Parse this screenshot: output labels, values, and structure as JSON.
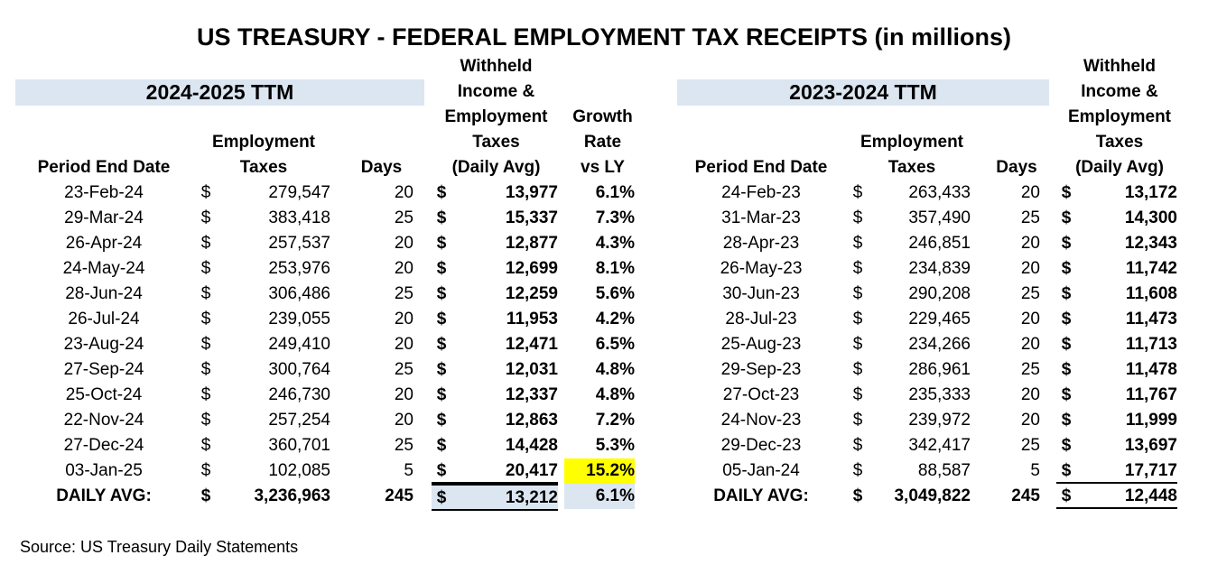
{
  "title": "US TREASURY - FEDERAL EMPLOYMENT TAX RECEIPTS (in millions)",
  "left": {
    "period_label": "2024-2025 TTM",
    "headers": {
      "date": [
        "Period End Date"
      ],
      "emp": [
        "Employment",
        "Taxes"
      ],
      "days": [
        "Days"
      ],
      "withheld": [
        "Withheld",
        "Income &",
        "Employment",
        "Taxes",
        "(Daily Avg)"
      ],
      "growth": [
        "Growth",
        "Rate",
        "vs LY"
      ]
    },
    "rows": [
      {
        "date": "23-Feb-24",
        "cur": "$",
        "emp": "279,547",
        "days": "20",
        "dcur": "$",
        "avg": "13,977",
        "growth": "6.1%"
      },
      {
        "date": "29-Mar-24",
        "cur": "$",
        "emp": "383,418",
        "days": "25",
        "dcur": "$",
        "avg": "15,337",
        "growth": "7.3%"
      },
      {
        "date": "26-Apr-24",
        "cur": "$",
        "emp": "257,537",
        "days": "20",
        "dcur": "$",
        "avg": "12,877",
        "growth": "4.3%"
      },
      {
        "date": "24-May-24",
        "cur": "$",
        "emp": "253,976",
        "days": "20",
        "dcur": "$",
        "avg": "12,699",
        "growth": "8.1%"
      },
      {
        "date": "28-Jun-24",
        "cur": "$",
        "emp": "306,486",
        "days": "25",
        "dcur": "$",
        "avg": "12,259",
        "growth": "5.6%"
      },
      {
        "date": "26-Jul-24",
        "cur": "$",
        "emp": "239,055",
        "days": "20",
        "dcur": "$",
        "avg": "11,953",
        "growth": "4.2%"
      },
      {
        "date": "23-Aug-24",
        "cur": "$",
        "emp": "249,410",
        "days": "20",
        "dcur": "$",
        "avg": "12,471",
        "growth": "6.5%"
      },
      {
        "date": "27-Sep-24",
        "cur": "$",
        "emp": "300,764",
        "days": "25",
        "dcur": "$",
        "avg": "12,031",
        "growth": "4.8%"
      },
      {
        "date": "25-Oct-24",
        "cur": "$",
        "emp": "246,730",
        "days": "20",
        "dcur": "$",
        "avg": "12,337",
        "growth": "4.8%"
      },
      {
        "date": "22-Nov-24",
        "cur": "$",
        "emp": "257,254",
        "days": "20",
        "dcur": "$",
        "avg": "12,863",
        "growth": "7.2%"
      },
      {
        "date": "27-Dec-24",
        "cur": "$",
        "emp": "360,701",
        "days": "25",
        "dcur": "$",
        "avg": "14,428",
        "growth": "5.3%"
      },
      {
        "date": "03-Jan-25",
        "cur": "$",
        "emp": "102,085",
        "days": "5",
        "dcur": "$",
        "avg": "20,417",
        "growth": "15.2%"
      }
    ],
    "total": {
      "label": "DAILY AVG:",
      "cur": "$",
      "emp": "3,236,963",
      "days": "245",
      "dcur": "$",
      "avg": "13,212",
      "growth": "6.1%"
    }
  },
  "right": {
    "period_label": "2023-2024 TTM",
    "headers": {
      "date": [
        "Period End Date"
      ],
      "emp": [
        "Employment",
        "Taxes"
      ],
      "days": [
        "Days"
      ],
      "withheld": [
        "Withheld",
        "Income &",
        "Employment",
        "Taxes",
        "(Daily Avg)"
      ]
    },
    "rows": [
      {
        "date": "24-Feb-23",
        "cur": "$",
        "emp": "263,433",
        "days": "20",
        "dcur": "$",
        "avg": "13,172"
      },
      {
        "date": "31-Mar-23",
        "cur": "$",
        "emp": "357,490",
        "days": "25",
        "dcur": "$",
        "avg": "14,300"
      },
      {
        "date": "28-Apr-23",
        "cur": "$",
        "emp": "246,851",
        "days": "20",
        "dcur": "$",
        "avg": "12,343"
      },
      {
        "date": "26-May-23",
        "cur": "$",
        "emp": "234,839",
        "days": "20",
        "dcur": "$",
        "avg": "11,742"
      },
      {
        "date": "30-Jun-23",
        "cur": "$",
        "emp": "290,208",
        "days": "25",
        "dcur": "$",
        "avg": "11,608"
      },
      {
        "date": "28-Jul-23",
        "cur": "$",
        "emp": "229,465",
        "days": "20",
        "dcur": "$",
        "avg": "11,473"
      },
      {
        "date": "25-Aug-23",
        "cur": "$",
        "emp": "234,266",
        "days": "20",
        "dcur": "$",
        "avg": "11,713"
      },
      {
        "date": "29-Sep-23",
        "cur": "$",
        "emp": "286,961",
        "days": "25",
        "dcur": "$",
        "avg": "11,478"
      },
      {
        "date": "27-Oct-23",
        "cur": "$",
        "emp": "235,333",
        "days": "20",
        "dcur": "$",
        "avg": "11,767"
      },
      {
        "date": "24-Nov-23",
        "cur": "$",
        "emp": "239,972",
        "days": "20",
        "dcur": "$",
        "avg": "11,999"
      },
      {
        "date": "29-Dec-23",
        "cur": "$",
        "emp": "342,417",
        "days": "25",
        "dcur": "$",
        "avg": "13,697"
      },
      {
        "date": "05-Jan-24",
        "cur": "$",
        "emp": "88,587",
        "days": "5",
        "dcur": "$",
        "avg": "17,717"
      }
    ],
    "total": {
      "label": "DAILY AVG:",
      "cur": "$",
      "emp": "3,049,822",
      "days": "245",
      "dcur": "$",
      "avg": "12,448"
    }
  },
  "source": "Source: US Treasury Daily Statements",
  "colors": {
    "header_band": "#dce6f1",
    "highlight": "#ffff00"
  }
}
